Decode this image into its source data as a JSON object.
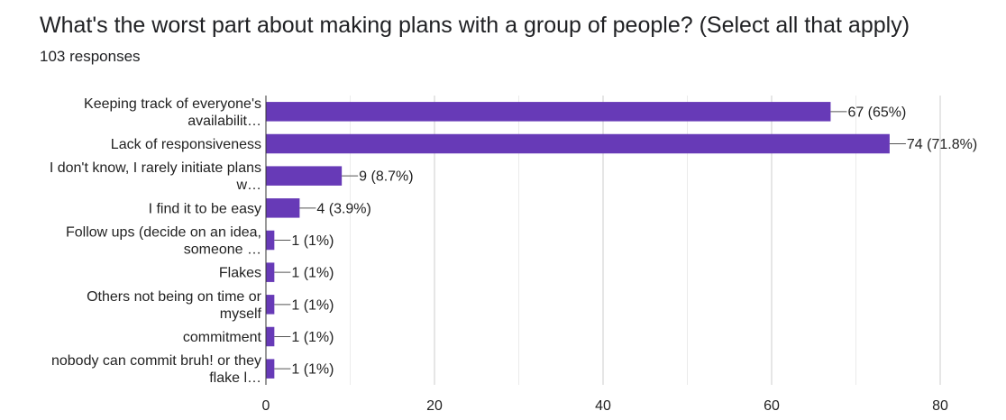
{
  "header": {
    "title": "What's the worst part about making plans with a group of people? (Select all that apply)",
    "subtitle": "103 responses"
  },
  "chart_data": {
    "type": "bar",
    "orientation": "horizontal",
    "categories": [
      [
        "Keeping track of everyone's",
        "availabilit…"
      ],
      [
        "Lack of responsiveness"
      ],
      [
        "I don't know, I rarely initiate plans",
        "w…"
      ],
      [
        "I find it to be easy"
      ],
      [
        "Follow ups (decide on an idea,",
        "someone …"
      ],
      [
        "Flakes"
      ],
      [
        "Others not being on time or",
        "myself"
      ],
      [
        "commitment"
      ],
      [
        "nobody can commit bruh! or they",
        "flake l…"
      ]
    ],
    "values": [
      67,
      74,
      9,
      4,
      1,
      1,
      1,
      1,
      1
    ],
    "data_labels": [
      "67 (65%)",
      "74 (71.8%)",
      "9 (8.7%)",
      "4 (3.9%)",
      "1 (1%)",
      "1 (1%)",
      "1 (1%)",
      "1 (1%)",
      "1 (1%)"
    ],
    "xlim": [
      0,
      80
    ],
    "xticks": [
      0,
      20,
      40,
      60,
      80
    ],
    "grid": true,
    "bar_color": "#673ab7"
  }
}
